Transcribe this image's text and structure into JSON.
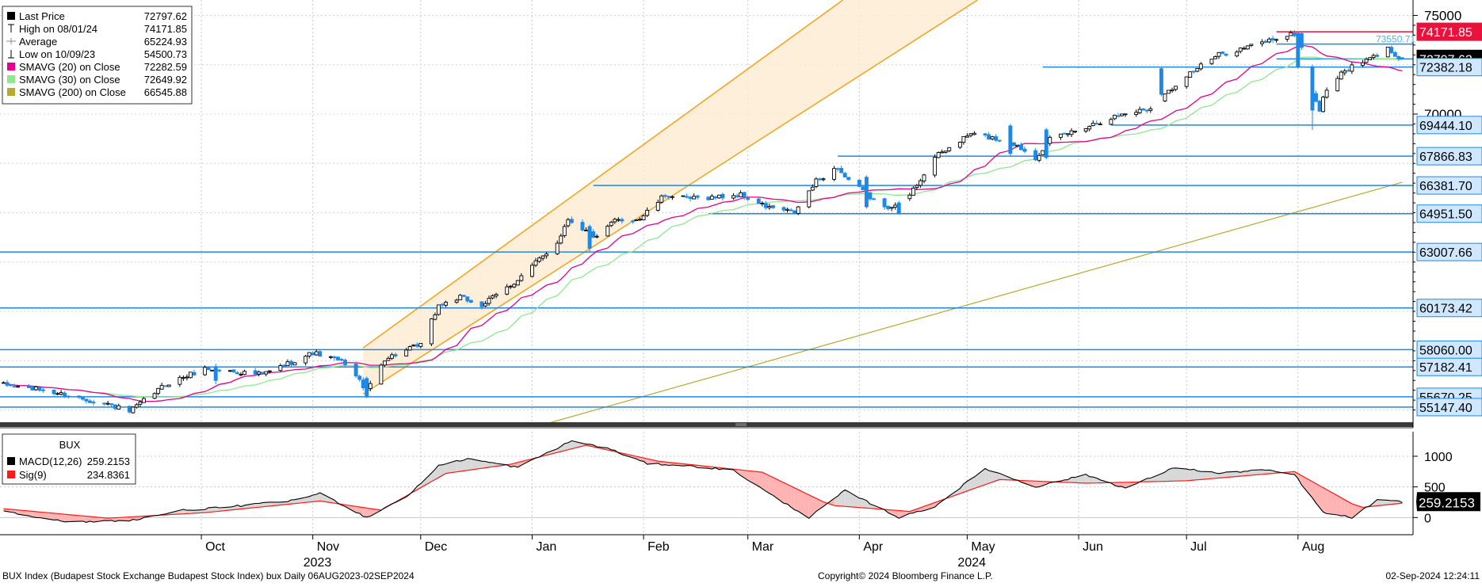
{
  "chart_data": [
    {
      "type": "candlestick",
      "title": "BUX",
      "legend": {
        "placement": "top-left",
        "entries": [
          {
            "label": "Last Price",
            "value": "72797.62",
            "color": "#000000",
            "marker": "square"
          },
          {
            "label": "High on 08/01/24",
            "value": "74171.85",
            "color": "#000000",
            "marker": "high-tick"
          },
          {
            "label": "Average",
            "value": "65224.93",
            "color": "#888888",
            "marker": "plus-line"
          },
          {
            "label": "Low on 10/09/23",
            "value": "54500.73",
            "color": "#000000",
            "marker": "low-tick"
          },
          {
            "label": "SMAVG (20)  on Close",
            "value": "72282.59",
            "color": "#e6008c",
            "marker": "square"
          },
          {
            "label": "SMAVG (30)  on Close",
            "value": "72649.92",
            "color": "#8ee88e",
            "marker": "square"
          },
          {
            "label": "SMAVG (200)  on Close",
            "value": "66545.88",
            "color": "#b8a832",
            "marker": "square"
          }
        ]
      },
      "y_axis": {
        "side": "right",
        "ylim": [
          54100,
          75300
        ],
        "ticks": [
          75000,
          70000
        ],
        "tick_labels": [
          "75000",
          "70000"
        ]
      },
      "x_axis": {
        "start": "2023-08-06",
        "end": "2024-09-02",
        "month_ticks": [
          {
            "label": "Oct",
            "date": "2023-10-01"
          },
          {
            "label": "Nov",
            "date": "2023-11-01"
          },
          {
            "label": "Dec",
            "date": "2023-12-01"
          },
          {
            "label": "Jan",
            "date": "2024-01-01"
          },
          {
            "label": "Feb",
            "date": "2024-02-01"
          },
          {
            "label": "Mar",
            "date": "2024-03-01"
          },
          {
            "label": "Apr",
            "date": "2024-04-01"
          },
          {
            "label": "May",
            "date": "2024-05-01"
          },
          {
            "label": "Jun",
            "date": "2024-06-01"
          },
          {
            "label": "Jul",
            "date": "2024-07-01"
          },
          {
            "label": "Aug",
            "date": "2024-08-01"
          }
        ],
        "year_labels": [
          {
            "label": "2023",
            "date": "2023-11-01"
          },
          {
            "label": "2024",
            "date": "2024-05-01"
          }
        ]
      },
      "grid": true,
      "colors": {
        "up_candle": "#ffffff",
        "down_candle": "#1e88e5",
        "sma20": "#e6008c",
        "sma30": "#8ee88e",
        "sma200": "#b8a832",
        "hline": "#1e88e5",
        "high_line": "#e8123c",
        "channel": "#f5a623"
      },
      "horizontal_lines": [
        {
          "value": 74171.85,
          "label": "74171.85",
          "color": "#e8123c",
          "label_bg": "#e8123c",
          "label_color": "#ffffff",
          "from": "2024-07-26"
        },
        {
          "value": 73550.71,
          "label": "73550.71",
          "color": "#1e88e5",
          "label_bg": "none",
          "label_color": "#45b8e8",
          "from": "2024-07-26"
        },
        {
          "value": 72797.62,
          "label": "72797.62",
          "color": "#1e88e5",
          "label_bg": "#000000",
          "label_color": "#ffffff",
          "from": "2024-07-26"
        },
        {
          "value": 72382.18,
          "label": "72382.18",
          "color": "#1e88e5",
          "label_bg": "#cfe8ff",
          "label_color": "#000000",
          "from": "2024-05-22"
        },
        {
          "value": 69444.1,
          "label": "69444.10",
          "color": "#1e88e5",
          "label_bg": "#cfe8ff",
          "label_color": "#000000",
          "from": "2024-06-10"
        },
        {
          "value": 67866.83,
          "label": "67866.83",
          "color": "#1e88e5",
          "label_bg": "#cfe8ff",
          "label_color": "#000000",
          "from": "2024-03-26"
        },
        {
          "value": 66381.7,
          "label": "66381.70",
          "color": "#1e88e5",
          "label_bg": "#cfe8ff",
          "label_color": "#000000",
          "from": "2024-01-18"
        },
        {
          "value": 64951.5,
          "label": "64951.50",
          "color": "#1e88e5",
          "label_bg": "#cfe8ff",
          "label_color": "#000000",
          "from": "2024-02-19"
        },
        {
          "value": 63007.66,
          "label": "63007.66",
          "color": "#1e88e5",
          "label_bg": "#cfe8ff",
          "label_color": "#000000",
          "from": "2023-08-06"
        },
        {
          "value": 60173.42,
          "label": "60173.42",
          "color": "#1e88e5",
          "label_bg": "#cfe8ff",
          "label_color": "#000000",
          "from": "2023-08-06"
        },
        {
          "value": 58060.0,
          "label": "58060.00",
          "color": "#1e88e5",
          "label_bg": "#cfe8ff",
          "label_color": "#000000",
          "from": "2023-08-06"
        },
        {
          "value": 57182.41,
          "label": "57182.41",
          "color": "#1e88e5",
          "label_bg": "#cfe8ff",
          "label_color": "#000000",
          "from": "2023-08-06"
        },
        {
          "value": 55670.25,
          "label": "55670.25",
          "color": "#1e88e5",
          "label_bg": "#cfe8ff",
          "label_color": "#000000",
          "from": "2023-08-06"
        },
        {
          "value": 55147.4,
          "label": "55147.40",
          "color": "#1e88e5",
          "label_bg": "#cfe8ff",
          "label_color": "#000000",
          "from": "2023-08-06"
        }
      ],
      "channel": {
        "lower": [
          {
            "date": "2023-11-15",
            "value": 55810
          },
          {
            "date": "2024-02-07",
            "value": 65680
          }
        ],
        "upper": [
          {
            "date": "2023-11-15",
            "value": 58150
          },
          {
            "date": "2024-02-07",
            "value": 69250
          }
        ]
      },
      "sma200_line": [
        {
          "date": "2024-01-01",
          "value": 54100
        },
        {
          "date": "2024-08-30",
          "value": 66545.88
        }
      ],
      "price_anchors": [
        {
          "date": "2023-08-06",
          "value": 56300
        },
        {
          "date": "2023-08-18",
          "value": 56000
        },
        {
          "date": "2023-09-05",
          "value": 55300
        },
        {
          "date": "2023-09-11",
          "value": 54900
        },
        {
          "date": "2023-09-21",
          "value": 56300
        },
        {
          "date": "2023-10-02",
          "value": 57100
        },
        {
          "date": "2023-10-18",
          "value": 56800
        },
        {
          "date": "2023-11-01",
          "value": 57900
        },
        {
          "date": "2023-11-10",
          "value": 57400
        },
        {
          "date": "2023-11-16",
          "value": 56000
        },
        {
          "date": "2023-11-21",
          "value": 57600
        },
        {
          "date": "2023-12-01",
          "value": 58300
        },
        {
          "date": "2023-12-06",
          "value": 60300
        },
        {
          "date": "2023-12-12",
          "value": 60700
        },
        {
          "date": "2023-12-18",
          "value": 60300
        },
        {
          "date": "2023-12-28",
          "value": 61600
        },
        {
          "date": "2024-01-08",
          "value": 63500
        },
        {
          "date": "2024-01-11",
          "value": 64700
        },
        {
          "date": "2024-01-19",
          "value": 63700
        },
        {
          "date": "2024-01-24",
          "value": 64600
        },
        {
          "date": "2024-01-31",
          "value": 64700
        },
        {
          "date": "2024-02-07",
          "value": 65900
        },
        {
          "date": "2024-02-13",
          "value": 65700
        },
        {
          "date": "2024-02-21",
          "value": 65800
        },
        {
          "date": "2024-02-28",
          "value": 65900
        },
        {
          "date": "2024-03-06",
          "value": 65300
        },
        {
          "date": "2024-03-14",
          "value": 65000
        },
        {
          "date": "2024-03-20",
          "value": 66600
        },
        {
          "date": "2024-03-26",
          "value": 67300
        },
        {
          "date": "2024-03-28",
          "value": 66800
        },
        {
          "date": "2024-04-08",
          "value": 65200
        },
        {
          "date": "2024-04-15",
          "value": 65900
        },
        {
          "date": "2024-04-22",
          "value": 67800
        },
        {
          "date": "2024-05-02",
          "value": 69000
        },
        {
          "date": "2024-05-13",
          "value": 68600
        },
        {
          "date": "2024-05-20",
          "value": 67800
        },
        {
          "date": "2024-05-24",
          "value": 68700
        },
        {
          "date": "2024-06-05",
          "value": 69500
        },
        {
          "date": "2024-06-13",
          "value": 70000
        },
        {
          "date": "2024-06-21",
          "value": 70300
        },
        {
          "date": "2024-07-01",
          "value": 72000
        },
        {
          "date": "2024-07-10",
          "value": 73000
        },
        {
          "date": "2024-07-18",
          "value": 73400
        },
        {
          "date": "2024-07-25",
          "value": 73800
        },
        {
          "date": "2024-08-01",
          "value": 74100
        },
        {
          "date": "2024-08-05",
          "value": 71100
        },
        {
          "date": "2024-08-07",
          "value": 70200
        },
        {
          "date": "2024-08-09",
          "value": 71300
        },
        {
          "date": "2024-08-14",
          "value": 72200
        },
        {
          "date": "2024-08-21",
          "value": 72800
        },
        {
          "date": "2024-08-26",
          "value": 73300
        },
        {
          "date": "2024-08-30",
          "value": 72797.62
        }
      ],
      "big_candles": [
        {
          "date": "2023-10-05",
          "open": 57200,
          "close": 56500,
          "high": 57350,
          "low": 56300
        },
        {
          "date": "2023-11-16",
          "open": 56600,
          "close": 55700,
          "high": 56700,
          "low": 55600
        },
        {
          "date": "2024-01-17",
          "open": 64300,
          "close": 63200,
          "high": 64400,
          "low": 63000
        },
        {
          "date": "2024-04-03",
          "open": 66800,
          "close": 65300,
          "high": 66900,
          "low": 65200
        },
        {
          "date": "2024-04-12",
          "open": 65500,
          "close": 65000,
          "high": 65600,
          "low": 64900
        },
        {
          "date": "2024-05-13",
          "open": 69400,
          "close": 68000,
          "high": 69500,
          "low": 67900
        },
        {
          "date": "2024-05-23",
          "open": 69200,
          "close": 67800,
          "high": 69300,
          "low": 67700
        },
        {
          "date": "2024-06-24",
          "open": 72300,
          "close": 71000,
          "high": 72400,
          "low": 70900
        },
        {
          "date": "2024-08-01",
          "open": 74100,
          "close": 72400,
          "high": 74200,
          "low": 72300
        },
        {
          "date": "2024-08-05",
          "open": 72400,
          "close": 70200,
          "high": 72500,
          "low": 69200
        }
      ]
    },
    {
      "type": "line",
      "title": "BUX",
      "legend": {
        "placement": "top-left",
        "entries": [
          {
            "label": "MACD(12,26)",
            "value": "259.2153",
            "color": "#000000"
          },
          {
            "label": "Sig(9)",
            "value": "234.8361",
            "color": "#ff1a1a"
          }
        ]
      },
      "y_axis": {
        "side": "right",
        "ylim": [
          -280,
          1400
        ],
        "ticks": [
          1000,
          500,
          0
        ],
        "tick_labels": [
          "1000",
          "500",
          "0"
        ]
      },
      "last_value_label": {
        "value": 259.2153,
        "label": "259.2153"
      },
      "macd_anchors": [
        {
          "date": "2023-08-06",
          "value": 120
        },
        {
          "date": "2023-08-25",
          "value": -80
        },
        {
          "date": "2023-09-12",
          "value": -40
        },
        {
          "date": "2023-09-26",
          "value": 120
        },
        {
          "date": "2023-10-06",
          "value": 160
        },
        {
          "date": "2023-10-27",
          "value": 280
        },
        {
          "date": "2023-11-03",
          "value": 400
        },
        {
          "date": "2023-11-16",
          "value": 0
        },
        {
          "date": "2023-11-28",
          "value": 380
        },
        {
          "date": "2023-12-06",
          "value": 850
        },
        {
          "date": "2023-12-14",
          "value": 960
        },
        {
          "date": "2023-12-28",
          "value": 820
        },
        {
          "date": "2024-01-12",
          "value": 1250
        },
        {
          "date": "2024-01-22",
          "value": 1130
        },
        {
          "date": "2024-02-02",
          "value": 880
        },
        {
          "date": "2024-02-12",
          "value": 850
        },
        {
          "date": "2024-02-26",
          "value": 770
        },
        {
          "date": "2024-03-08",
          "value": 350
        },
        {
          "date": "2024-03-18",
          "value": 0
        },
        {
          "date": "2024-03-28",
          "value": 440
        },
        {
          "date": "2024-04-12",
          "value": 0
        },
        {
          "date": "2024-04-22",
          "value": 180
        },
        {
          "date": "2024-05-06",
          "value": 800
        },
        {
          "date": "2024-05-20",
          "value": 500
        },
        {
          "date": "2024-06-03",
          "value": 700
        },
        {
          "date": "2024-06-14",
          "value": 480
        },
        {
          "date": "2024-06-28",
          "value": 820
        },
        {
          "date": "2024-07-10",
          "value": 720
        },
        {
          "date": "2024-07-22",
          "value": 780
        },
        {
          "date": "2024-07-31",
          "value": 700
        },
        {
          "date": "2024-08-08",
          "value": 80
        },
        {
          "date": "2024-08-16",
          "value": 0
        },
        {
          "date": "2024-08-23",
          "value": 280
        },
        {
          "date": "2024-08-30",
          "value": 259.2153
        }
      ],
      "signal_anchors": [
        {
          "date": "2023-08-06",
          "value": 150
        },
        {
          "date": "2023-09-05",
          "value": -10
        },
        {
          "date": "2023-10-02",
          "value": 80
        },
        {
          "date": "2023-11-03",
          "value": 270
        },
        {
          "date": "2023-11-20",
          "value": 120
        },
        {
          "date": "2023-12-08",
          "value": 720
        },
        {
          "date": "2023-12-26",
          "value": 870
        },
        {
          "date": "2024-01-16",
          "value": 1180
        },
        {
          "date": "2024-02-05",
          "value": 920
        },
        {
          "date": "2024-03-05",
          "value": 740
        },
        {
          "date": "2024-03-24",
          "value": 200
        },
        {
          "date": "2024-04-15",
          "value": 100
        },
        {
          "date": "2024-05-10",
          "value": 620
        },
        {
          "date": "2024-06-03",
          "value": 560
        },
        {
          "date": "2024-07-01",
          "value": 600
        },
        {
          "date": "2024-07-31",
          "value": 750
        },
        {
          "date": "2024-08-18",
          "value": 160
        },
        {
          "date": "2024-08-30",
          "value": 234.8361
        }
      ]
    }
  ],
  "footer": {
    "left": "BUX Index (Budapest Stock Exchange Budapest Stock Index) bux  Daily 06AUG2023-02SEP2024",
    "center": "Copyright© 2024 Bloomberg Finance L.P.",
    "right": "02-Sep-2024 12:24:11"
  }
}
